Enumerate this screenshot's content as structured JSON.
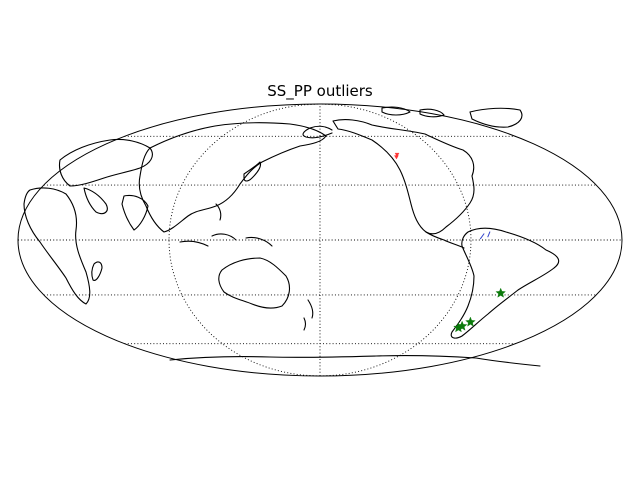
{
  "title": "SS_PP outliers",
  "map": {
    "projection": "mollweide",
    "central_longitude": 180,
    "graticule": {
      "parallels": [
        -60,
        -30,
        0,
        30,
        60
      ],
      "meridians": [
        90,
        180,
        270
      ]
    },
    "line_color": "#000000"
  },
  "markers": [
    {
      "name": "red-event",
      "symbol": "small-triangle",
      "color": "#ff3333",
      "lon": -122.5,
      "lat": 46.5
    },
    {
      "name": "red-event",
      "symbol": "small-triangle",
      "color": "#ff3333",
      "lon": -121.0,
      "lat": 48.0
    },
    {
      "name": "green-event",
      "symbol": "star",
      "color": "#0b7a0b",
      "lon": -63.0,
      "lat": -29.0
    },
    {
      "name": "green-event",
      "symbol": "star",
      "color": "#0b7a0b",
      "lon": -67.5,
      "lat": -46.0
    },
    {
      "name": "green-event",
      "symbol": "star",
      "color": "#0b7a0b",
      "lon": -70.5,
      "lat": -48.5
    },
    {
      "name": "green-event",
      "symbol": "star",
      "color": "#0b7a0b",
      "lon": -72.0,
      "lat": -49.5
    }
  ],
  "paths": [
    {
      "name": "blue-ray-path",
      "color": "#3344cc",
      "points": [
        [
          -84.5,
          0.5
        ],
        [
          -82.0,
          3.5
        ]
      ]
    },
    {
      "name": "blue-ray-path",
      "color": "#3344cc",
      "points": [
        [
          -80.0,
          1.5
        ],
        [
          -78.5,
          4.5
        ]
      ]
    }
  ]
}
